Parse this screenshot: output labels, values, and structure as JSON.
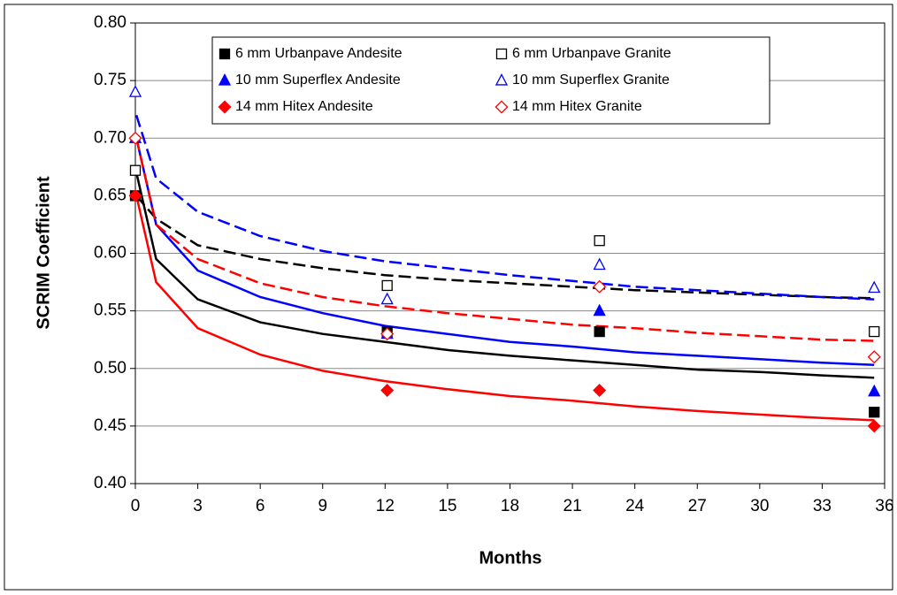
{
  "chart_data": {
    "type": "scatter",
    "xlabel": "Months",
    "ylabel": "SCRIM Coefficient",
    "xlim": [
      0,
      36
    ],
    "xticks": [
      0,
      3,
      6,
      9,
      12,
      15,
      18,
      21,
      24,
      27,
      30,
      33,
      36
    ],
    "ylim": [
      0.4,
      0.8
    ],
    "yticks": [
      {
        "value": 0.4,
        "label": "0.40"
      },
      0.45,
      {
        "value": 0.5,
        "label": "0.50"
      },
      0.55,
      {
        "value": 0.6,
        "label": "0.60"
      },
      0.65,
      {
        "value": 0.7,
        "label": "0.70"
      },
      0.75,
      {
        "value": 0.8,
        "label": "0.80"
      }
    ],
    "grid": true,
    "legend": "top",
    "x": [
      0,
      12.1,
      22.3,
      35.5
    ],
    "series": [
      {
        "name": "6 mm Urbanpave Andesite",
        "color": "#000000",
        "marker": "square",
        "filled": true,
        "values": [
          0.65,
          0.532,
          0.532,
          0.462
        ]
      },
      {
        "name": "6 mm Urbanpave Granite",
        "color": "#000000",
        "marker": "square",
        "filled": false,
        "values": [
          0.672,
          0.572,
          0.611,
          0.532
        ]
      },
      {
        "name": "10 mm Superflex Andesite",
        "color": "#0000ff",
        "marker": "triangle",
        "filled": true,
        "values": [
          0.7,
          0.53,
          0.55,
          0.48
        ]
      },
      {
        "name": "10 mm Superflex Granite",
        "color": "#0000ff",
        "marker": "triangle",
        "filled": false,
        "values": [
          0.74,
          0.56,
          0.59,
          0.57
        ]
      },
      {
        "name": "14 mm Hitex Andesite",
        "color": "#ff0000",
        "marker": "diamond",
        "filled": true,
        "values": [
          0.65,
          0.481,
          0.481,
          0.45
        ]
      },
      {
        "name": "14 mm Hitex Granite",
        "color": "#ff0000",
        "marker": "diamond",
        "filled": false,
        "values": [
          0.7,
          0.53,
          0.571,
          0.51
        ]
      }
    ],
    "trend_x": [
      0.05,
      1,
      3,
      6,
      9,
      12,
      15,
      18,
      21,
      24,
      27,
      30,
      33,
      35.5
    ],
    "trendlines": [
      {
        "color": "#000000",
        "dashed": false,
        "values": [
          0.67,
          0.595,
          0.56,
          0.54,
          0.53,
          0.523,
          0.516,
          0.511,
          0.507,
          0.503,
          0.499,
          0.497,
          0.494,
          0.492
        ]
      },
      {
        "color": "#000000",
        "dashed": true,
        "values": [
          0.65,
          0.63,
          0.607,
          0.595,
          0.587,
          0.581,
          0.577,
          0.574,
          0.571,
          0.568,
          0.566,
          0.564,
          0.562,
          0.561
        ]
      },
      {
        "color": "#0000ff",
        "dashed": false,
        "values": [
          0.7,
          0.625,
          0.585,
          0.562,
          0.548,
          0.537,
          0.53,
          0.523,
          0.519,
          0.514,
          0.511,
          0.508,
          0.505,
          0.503
        ]
      },
      {
        "color": "#0000ff",
        "dashed": true,
        "values": [
          0.72,
          0.665,
          0.636,
          0.615,
          0.602,
          0.593,
          0.587,
          0.581,
          0.576,
          0.571,
          0.568,
          0.565,
          0.562,
          0.56
        ]
      },
      {
        "color": "#ff0000",
        "dashed": false,
        "values": [
          0.65,
          0.575,
          0.535,
          0.512,
          0.498,
          0.489,
          0.482,
          0.476,
          0.472,
          0.467,
          0.463,
          0.46,
          0.457,
          0.455
        ]
      },
      {
        "color": "#ff0000",
        "dashed": true,
        "values": [
          0.7,
          0.625,
          0.595,
          0.574,
          0.562,
          0.554,
          0.548,
          0.543,
          0.538,
          0.535,
          0.531,
          0.528,
          0.525,
          0.524
        ]
      }
    ]
  }
}
